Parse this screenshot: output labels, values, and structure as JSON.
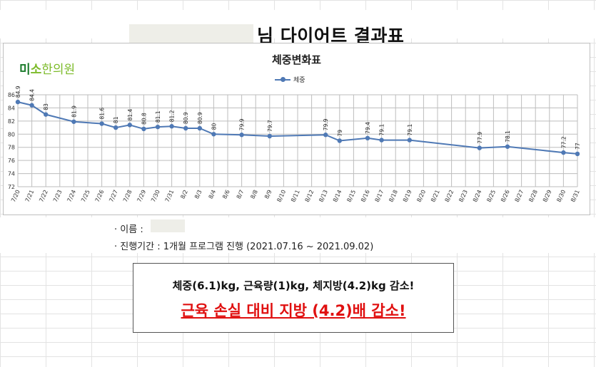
{
  "header": {
    "title": "님 다이어트 결과표"
  },
  "logo": {
    "part1": "미",
    "part2": "소",
    "part3": "한의원"
  },
  "chart_data": {
    "type": "line",
    "title": "체중변화표",
    "legend": "top-center",
    "series": [
      {
        "name": "체중",
        "color": "#4f79b5",
        "points": [
          {
            "x": "7/20",
            "y": 84.9
          },
          {
            "x": "7/21",
            "y": 84.4
          },
          {
            "x": "7/22",
            "y": 83
          },
          {
            "x": "7/24",
            "y": 81.9
          },
          {
            "x": "7/26",
            "y": 81.6
          },
          {
            "x": "7/27",
            "y": 81
          },
          {
            "x": "7/28",
            "y": 81.4
          },
          {
            "x": "7/29",
            "y": 80.8
          },
          {
            "x": "7/30",
            "y": 81.1
          },
          {
            "x": "7/31",
            "y": 81.2
          },
          {
            "x": "8/2",
            "y": 80.9
          },
          {
            "x": "8/3",
            "y": 80.9
          },
          {
            "x": "8/4",
            "y": 80
          },
          {
            "x": "8/7",
            "y": 79.9
          },
          {
            "x": "8/9",
            "y": 79.7
          },
          {
            "x": "8/13",
            "y": 79.9
          },
          {
            "x": "8/14",
            "y": 79
          },
          {
            "x": "8/16",
            "y": 79.4
          },
          {
            "x": "8/17",
            "y": 79.1
          },
          {
            "x": "8/19",
            "y": 79.1
          },
          {
            "x": "8/24",
            "y": 77.9
          },
          {
            "x": "8/26",
            "y": 78.1
          },
          {
            "x": "8/30",
            "y": 77.2
          },
          {
            "x": "8/31",
            "y": 77
          }
        ]
      }
    ],
    "categories": [
      "7/20",
      "7/21",
      "7/22",
      "7/23",
      "7/24",
      "7/25",
      "7/26",
      "7/27",
      "7/28",
      "7/29",
      "7/30",
      "7/31",
      "8/2",
      "8/3",
      "8/4",
      "8/6",
      "8/7",
      "8/8",
      "8/9",
      "8/10",
      "8/11",
      "8/12",
      "8/13",
      "8/14",
      "8/15",
      "8/16",
      "8/17",
      "8/18",
      "8/19",
      "8/20",
      "8/21",
      "8/22",
      "8/23",
      "8/24",
      "8/25",
      "8/26",
      "8/27",
      "8/28",
      "8/29",
      "8/30",
      "8/31"
    ],
    "ylim": [
      72,
      86
    ],
    "yticks": [
      72,
      74,
      76,
      78,
      80,
      82,
      84,
      86
    ],
    "grid": true
  },
  "info": {
    "name_label": "· 이름 :",
    "period_label": "· 진행기간 : 1개월 프로그램 진행 (2021.07.16 ~ 2021.09.02)"
  },
  "summary": {
    "line1": "체중(6.1)kg, 근육량(1)kg, 체지방(4.2)kg 감소!",
    "line2": "근육 손실 대비 지방 (4.2)배 감소!"
  }
}
